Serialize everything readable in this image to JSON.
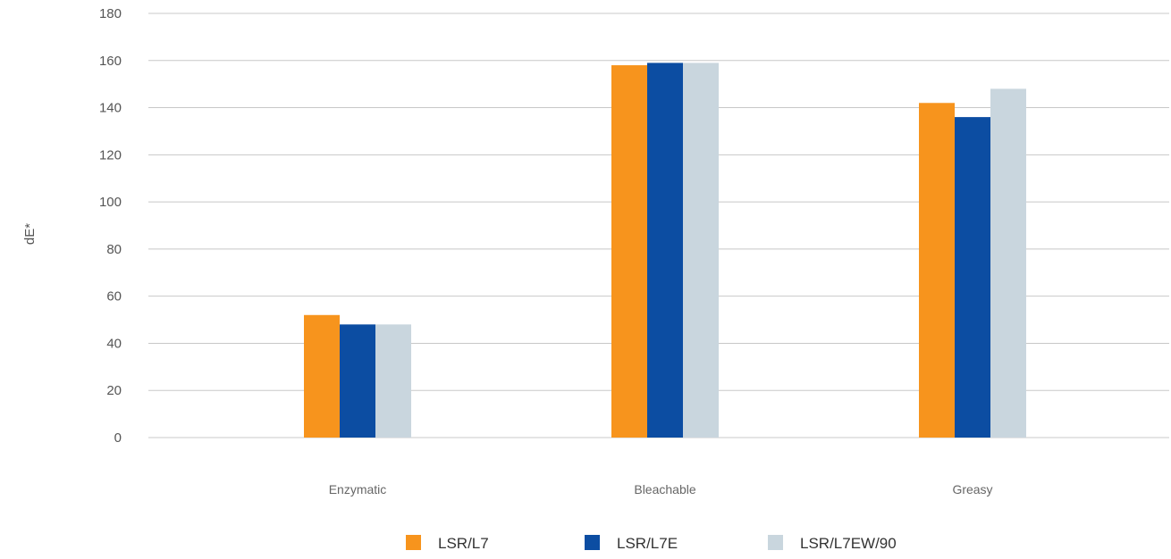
{
  "chart_data": {
    "type": "bar",
    "title": "",
    "xlabel": "",
    "ylabel": "dE*",
    "ylim": [
      0,
      180
    ],
    "yticks": [
      0,
      20,
      40,
      60,
      80,
      100,
      120,
      140,
      160,
      180
    ],
    "grid": true,
    "legend_position": "bottom",
    "categories": [
      "Enzymatic",
      "Bleachable",
      "Greasy"
    ],
    "series": [
      {
        "name": "LSR/L7",
        "color": "#f7941d",
        "values": [
          52,
          158,
          142
        ]
      },
      {
        "name": "LSR/L7E",
        "color": "#0c4da2",
        "values": [
          48,
          159,
          136
        ]
      },
      {
        "name": "LSR/L7EW/90",
        "color": "#c9d6de",
        "values": [
          48,
          159,
          148
        ]
      }
    ]
  }
}
